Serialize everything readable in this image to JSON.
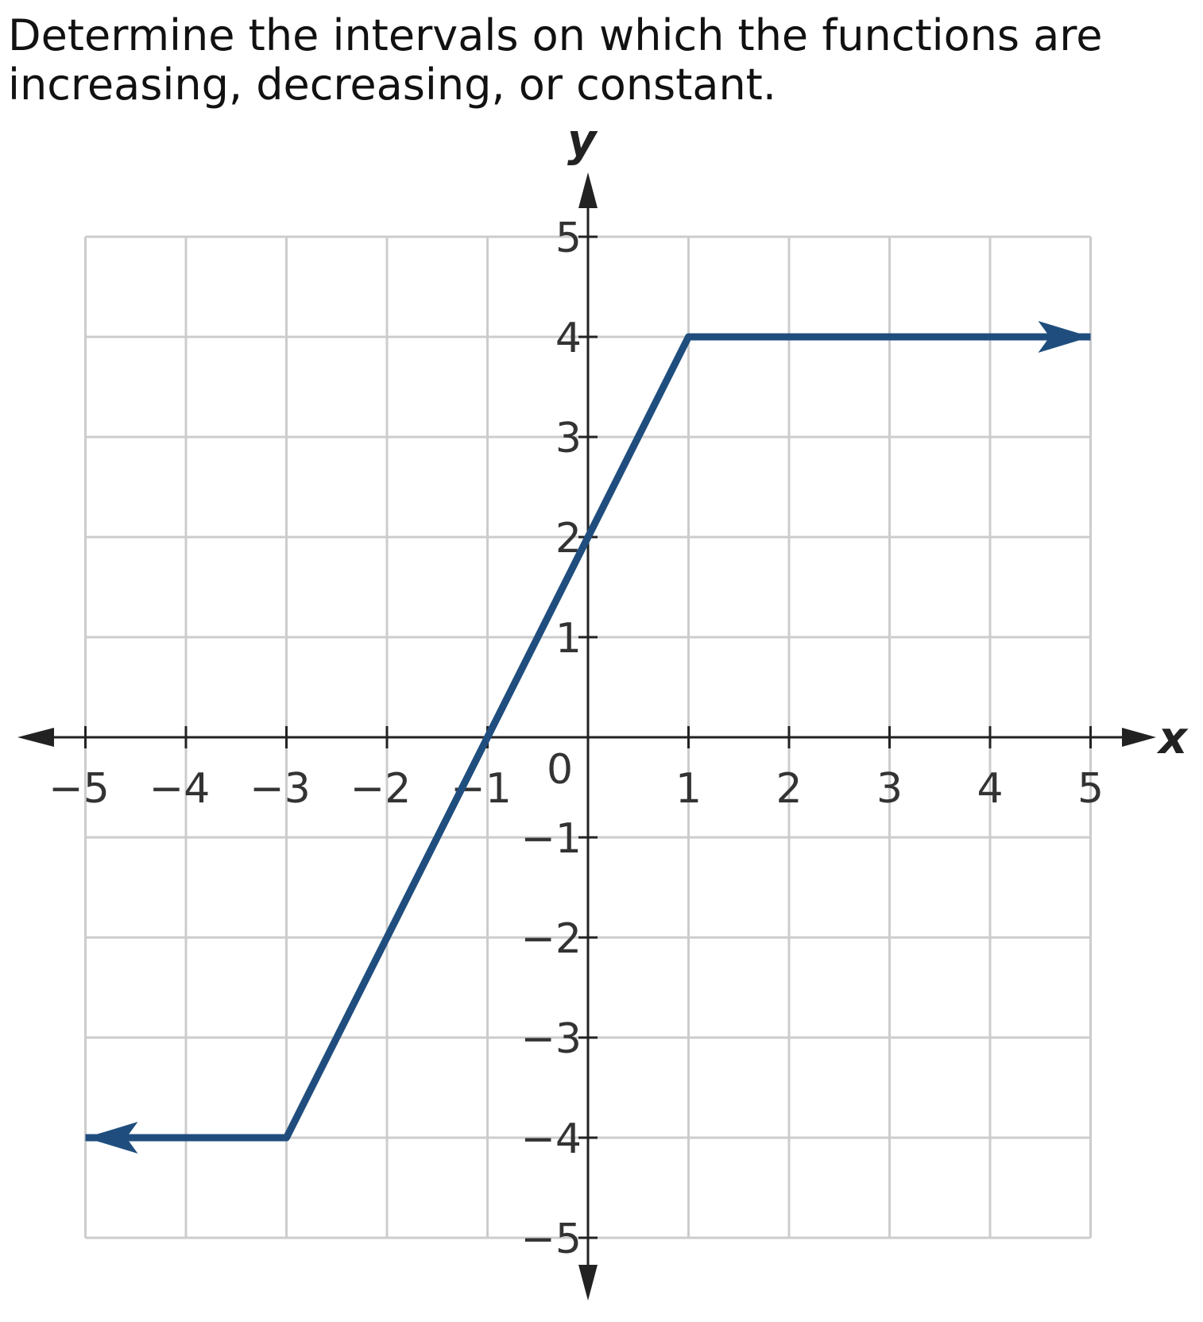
{
  "question": "Determine the intervals on which the functions are increasing, decreasing, or constant.",
  "chart_data": {
    "type": "line",
    "title": "",
    "xlabel": "x",
    "ylabel": "y",
    "xlim": [
      -5,
      5
    ],
    "ylim": [
      -5,
      5
    ],
    "x_ticks": [
      -5,
      -4,
      -3,
      -2,
      -1,
      1,
      2,
      3,
      4,
      5
    ],
    "x_tick_labels": [
      "−5",
      "−4",
      "−3",
      "−2",
      "−1",
      "1",
      "2",
      "3",
      "4",
      "5"
    ],
    "y_ticks": [
      5,
      4,
      3,
      2,
      1,
      -1,
      -2,
      -3,
      -4,
      -5
    ],
    "y_tick_labels": [
      "5",
      "4",
      "3",
      "2",
      "1",
      "−1",
      "−2",
      "−3",
      "−4",
      "−5"
    ],
    "origin_label": "0",
    "grid": true,
    "series": [
      {
        "x": [
          -5,
          -3,
          1,
          5
        ],
        "y": [
          -4,
          -4,
          4,
          4
        ],
        "arrow_start": true,
        "arrow_end": true,
        "color": "#1f4e7e"
      }
    ],
    "colors": {
      "grid": "#cccccc",
      "axis": "#222222",
      "line": "#1f4e7e"
    }
  }
}
